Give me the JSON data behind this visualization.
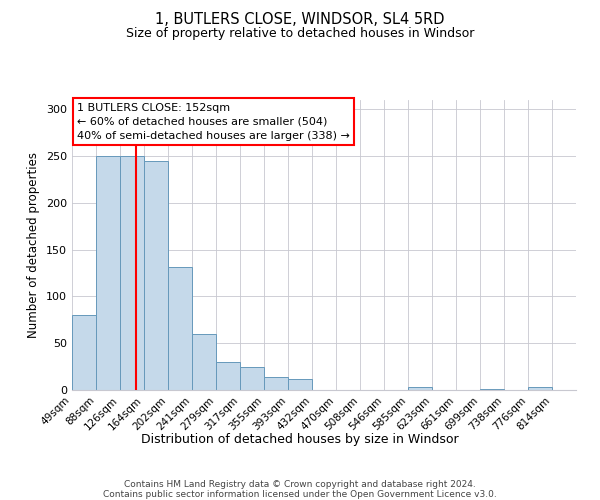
{
  "title": "1, BUTLERS CLOSE, WINDSOR, SL4 5RD",
  "subtitle": "Size of property relative to detached houses in Windsor",
  "xlabel": "Distribution of detached houses by size in Windsor",
  "ylabel": "Number of detached properties",
  "bar_color": "#c5d9ea",
  "bar_edge_color": "#6699bb",
  "categories": [
    "49sqm",
    "88sqm",
    "126sqm",
    "164sqm",
    "202sqm",
    "241sqm",
    "279sqm",
    "317sqm",
    "355sqm",
    "393sqm",
    "432sqm",
    "470sqm",
    "508sqm",
    "546sqm",
    "585sqm",
    "623sqm",
    "661sqm",
    "699sqm",
    "738sqm",
    "776sqm",
    "814sqm"
  ],
  "values": [
    80,
    250,
    250,
    245,
    132,
    60,
    30,
    25,
    14,
    12,
    0,
    0,
    0,
    0,
    3,
    0,
    0,
    1,
    0,
    3,
    0
  ],
  "ylim": [
    0,
    310
  ],
  "yticks": [
    0,
    50,
    100,
    150,
    200,
    250,
    300
  ],
  "red_line_x": 2.65,
  "annotation_title": "1 BUTLERS CLOSE: 152sqm",
  "annotation_line1": "← 60% of detached houses are smaller (504)",
  "annotation_line2": "40% of semi-detached houses are larger (338) →",
  "footer_line1": "Contains HM Land Registry data © Crown copyright and database right 2024.",
  "footer_line2": "Contains public sector information licensed under the Open Government Licence v3.0.",
  "background_color": "#ffffff",
  "grid_color": "#c8c8d0"
}
